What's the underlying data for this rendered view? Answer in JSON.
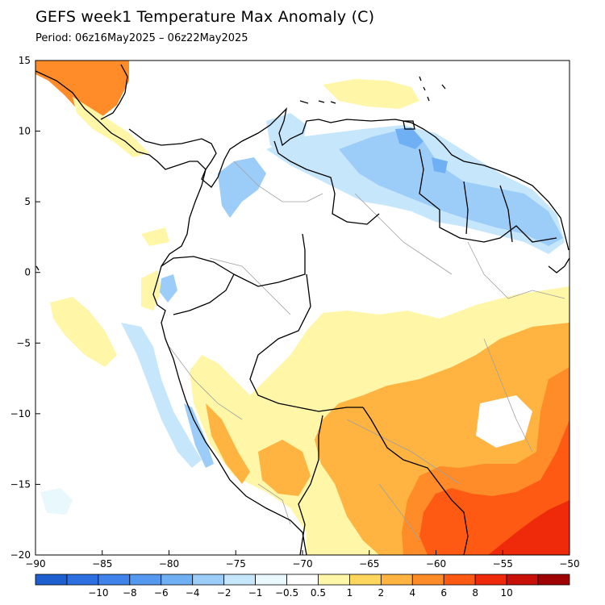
{
  "header": {
    "title": "GEFS week1 Temperature Max Anomaly (C)",
    "period": "Period: 06z16May2025 – 06z22May2025"
  },
  "map": {
    "lon_range": [
      -90,
      -50
    ],
    "lat_range": [
      -20,
      15
    ],
    "x_ticks": [
      {
        "value": -90,
        "label": "−90"
      },
      {
        "value": -85,
        "label": "−85"
      },
      {
        "value": -80,
        "label": "−80"
      },
      {
        "value": -75,
        "label": "−75"
      },
      {
        "value": -70,
        "label": "−70"
      },
      {
        "value": -65,
        "label": "−65"
      },
      {
        "value": -60,
        "label": "−60"
      },
      {
        "value": -55,
        "label": "−55"
      },
      {
        "value": -50,
        "label": "−50"
      }
    ],
    "y_ticks": [
      {
        "value": 15,
        "label": "15"
      },
      {
        "value": 10,
        "label": "10"
      },
      {
        "value": 5,
        "label": "5"
      },
      {
        "value": 0,
        "label": "0"
      },
      {
        "value": -5,
        "label": "−5"
      },
      {
        "value": -10,
        "label": "−10"
      },
      {
        "value": -15,
        "label": "−15"
      },
      {
        "value": -20,
        "label": "−20"
      }
    ]
  },
  "colorbar": {
    "colors": [
      "#1e5fd0",
      "#2c6fe0",
      "#3f83ea",
      "#5598ef",
      "#6fb0f4",
      "#9ccdf8",
      "#c6e6fb",
      "#e8f8fd",
      "#ffffff",
      "#fff6a8",
      "#ffd75e",
      "#ffb340",
      "#ff8c28",
      "#ff5a14",
      "#ee2a0a",
      "#c81008",
      "#9e0205"
    ],
    "labels": [
      "−10",
      "−8",
      "−6",
      "−4",
      "−2",
      "−1",
      "−0.5",
      "0.5",
      "1",
      "2",
      "4",
      "6",
      "8",
      "10"
    ]
  },
  "colors": {
    "coast": "#000000",
    "province_borders": "#a0a0a0",
    "frame": "#000000"
  }
}
